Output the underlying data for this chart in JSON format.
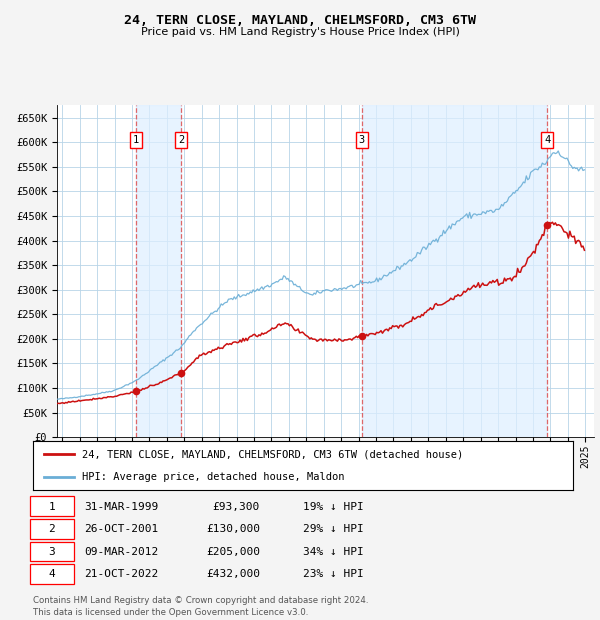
{
  "title": "24, TERN CLOSE, MAYLAND, CHELMSFORD, CM3 6TW",
  "subtitle": "Price paid vs. HM Land Registry's House Price Index (HPI)",
  "legend_line1": "24, TERN CLOSE, MAYLAND, CHELMSFORD, CM3 6TW (detached house)",
  "legend_line2": "HPI: Average price, detached house, Maldon",
  "footer1": "Contains HM Land Registry data © Crown copyright and database right 2024.",
  "footer2": "This data is licensed under the Open Government Licence v3.0.",
  "transactions": [
    {
      "num": 1,
      "date": "31-MAR-1999",
      "price": 93300,
      "pct": "19% ↓ HPI",
      "date_val": 1999.247
    },
    {
      "num": 2,
      "date": "26-OCT-2001",
      "price": 130000,
      "pct": "29% ↓ HPI",
      "date_val": 2001.819
    },
    {
      "num": 3,
      "date": "09-MAR-2012",
      "price": 205000,
      "pct": "34% ↓ HPI",
      "date_val": 2012.186
    },
    {
      "num": 4,
      "date": "21-OCT-2022",
      "price": 432000,
      "pct": "23% ↓ HPI",
      "date_val": 2022.808
    }
  ],
  "hpi_color": "#6aaed6",
  "price_color": "#cc1111",
  "fig_bg": "#f4f4f4",
  "plot_bg": "#ffffff",
  "grid_color": "#b8d4e8",
  "span_color": "#ddeeff",
  "vline_color": "#dd4444",
  "yticks": [
    0,
    50000,
    100000,
    150000,
    200000,
    250000,
    300000,
    350000,
    400000,
    450000,
    500000,
    550000,
    600000,
    650000
  ],
  "ylim": [
    0,
    675000
  ],
  "xlim_start": 1994.7,
  "xlim_end": 2025.5
}
